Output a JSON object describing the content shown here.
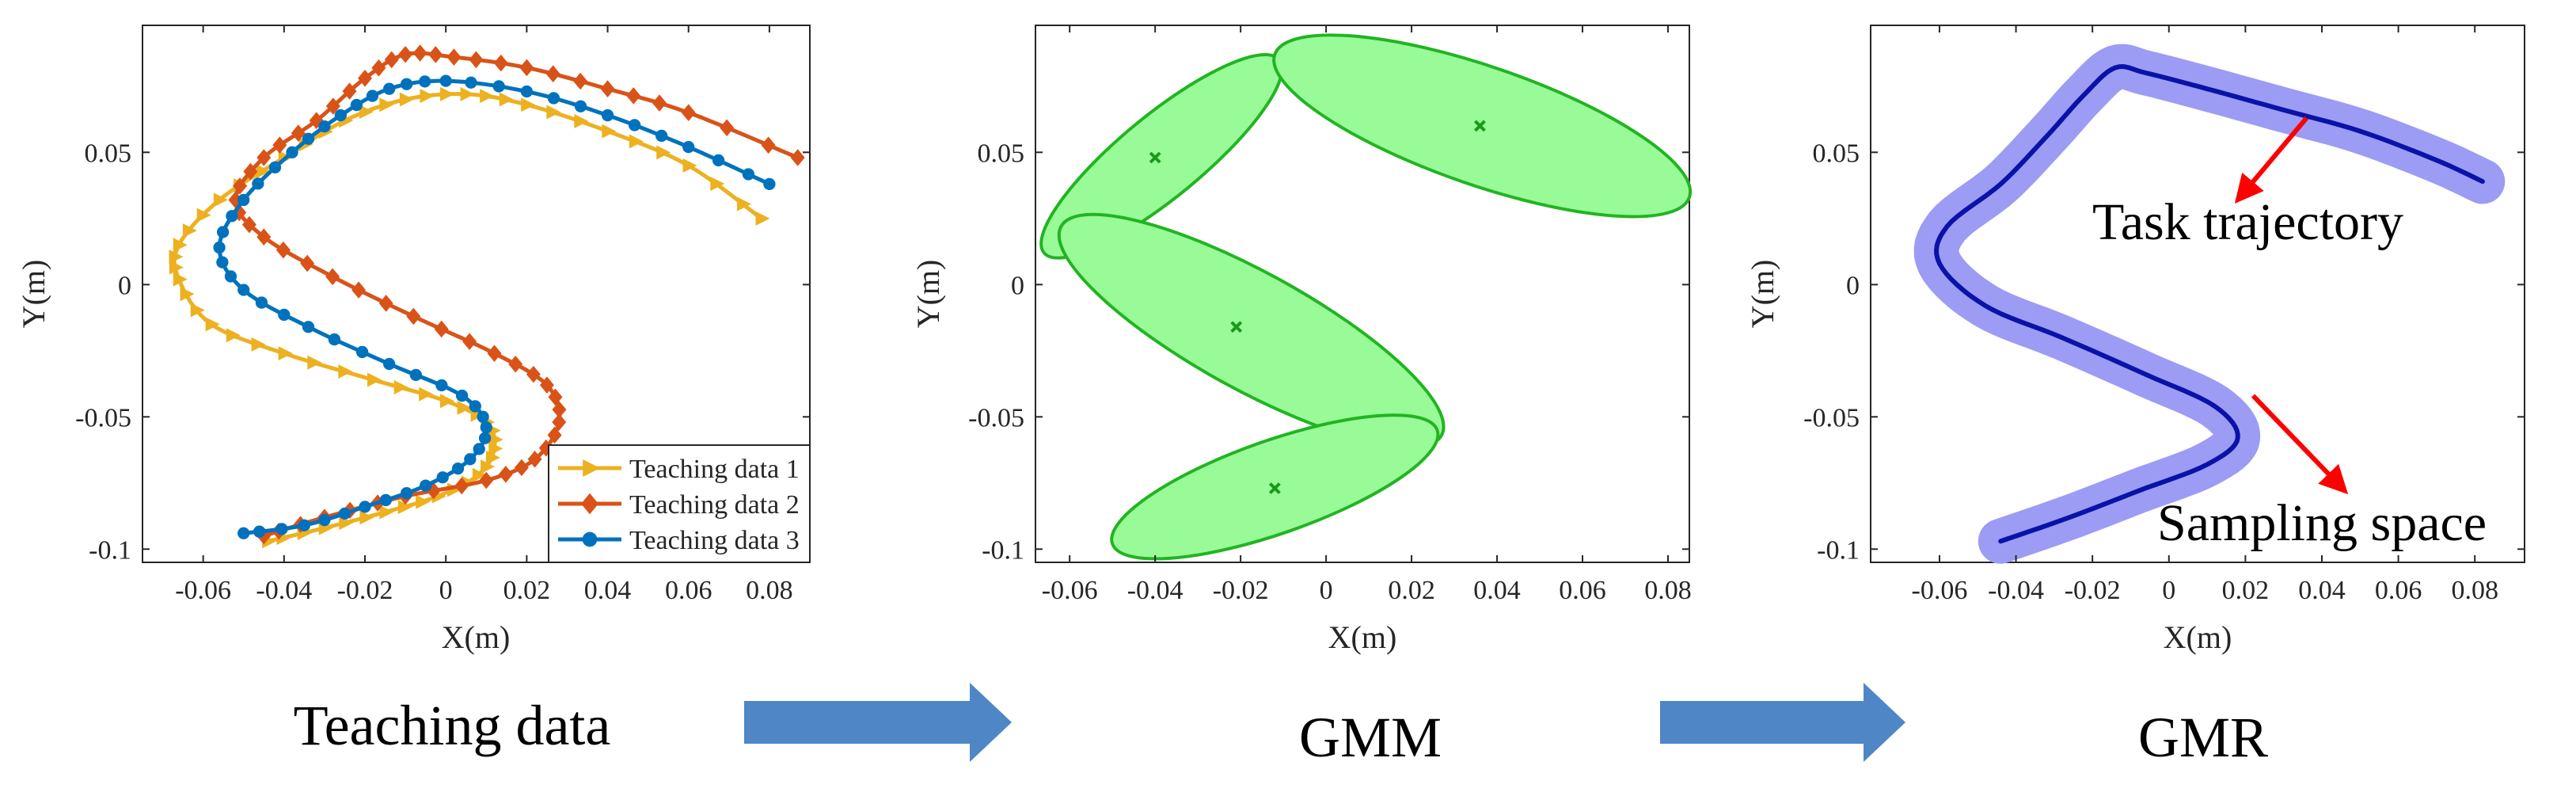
{
  "panels": [
    {
      "chart_data": {
        "type": "line",
        "title": "",
        "xlabel": "X(m)",
        "ylabel": "Y(m)",
        "xlim": [
          -0.075,
          0.09
        ],
        "ylim": [
          -0.105,
          0.098
        ],
        "xticks": [
          -0.06,
          -0.04,
          -0.02,
          0,
          0.02,
          0.04,
          0.06,
          0.08
        ],
        "xtick_labels": [
          "-0.06",
          "-0.04",
          "-0.02",
          "0",
          "0.02",
          "0.04",
          "0.06",
          "0.08"
        ],
        "yticks": [
          0.05,
          0,
          -0.05,
          -0.1
        ],
        "ytick_labels": [
          "0.05",
          "0",
          "-0.05",
          "-0.1"
        ],
        "grid": false,
        "legend_position": "bottom-right",
        "series": [
          {
            "name": "Teaching data 1",
            "color": "#EDB120",
            "marker": "triangle-right",
            "points": [
              [
                -0.044,
                -0.097
              ],
              [
                -0.03,
                -0.092
              ],
              [
                -0.015,
                -0.086
              ],
              [
                -0.002,
                -0.08
              ],
              [
                0.008,
                -0.072
              ],
              [
                0.012,
                -0.062
              ],
              [
                0.01,
                -0.052
              ],
              [
                0.0,
                -0.044
              ],
              [
                -0.018,
                -0.036
              ],
              [
                -0.04,
                -0.026
              ],
              [
                -0.058,
                -0.015
              ],
              [
                -0.066,
                0.002
              ],
              [
                -0.066,
                0.015
              ],
              [
                -0.056,
                0.032
              ],
              [
                -0.04,
                0.048
              ],
              [
                -0.025,
                0.062
              ],
              [
                -0.01,
                0.07
              ],
              [
                0.005,
                0.072
              ],
              [
                0.02,
                0.068
              ],
              [
                0.04,
                0.058
              ],
              [
                0.06,
                0.045
              ],
              [
                0.078,
                0.025
              ]
            ]
          },
          {
            "name": "Teaching data 2",
            "color": "#D95319",
            "marker": "diamond",
            "points": [
              [
                -0.045,
                -0.095
              ],
              [
                -0.03,
                -0.088
              ],
              [
                -0.01,
                -0.08
              ],
              [
                0.01,
                -0.074
              ],
              [
                0.022,
                -0.066
              ],
              [
                0.028,
                -0.052
              ],
              [
                0.025,
                -0.038
              ],
              [
                0.012,
                -0.026
              ],
              [
                -0.008,
                -0.012
              ],
              [
                -0.028,
                0.003
              ],
              [
                -0.045,
                0.018
              ],
              [
                -0.052,
                0.032
              ],
              [
                -0.045,
                0.048
              ],
              [
                -0.032,
                0.062
              ],
              [
                -0.02,
                0.078
              ],
              [
                -0.01,
                0.087
              ],
              [
                0.002,
                0.086
              ],
              [
                0.02,
                0.082
              ],
              [
                0.04,
                0.074
              ],
              [
                0.06,
                0.065
              ],
              [
                0.087,
                0.048
              ]
            ]
          },
          {
            "name": "Teaching data 3",
            "color": "#0072BD",
            "marker": "circle",
            "points": [
              [
                -0.05,
                -0.094
              ],
              [
                -0.035,
                -0.091
              ],
              [
                -0.02,
                -0.084
              ],
              [
                -0.005,
                -0.076
              ],
              [
                0.006,
                -0.066
              ],
              [
                0.01,
                -0.054
              ],
              [
                0.004,
                -0.042
              ],
              [
                -0.014,
                -0.03
              ],
              [
                -0.034,
                -0.016
              ],
              [
                -0.05,
                -0.002
              ],
              [
                -0.056,
                0.014
              ],
              [
                -0.05,
                0.032
              ],
              [
                -0.038,
                0.05
              ],
              [
                -0.026,
                0.064
              ],
              [
                -0.014,
                0.074
              ],
              [
                0.0,
                0.077
              ],
              [
                0.02,
                0.073
              ],
              [
                0.04,
                0.064
              ],
              [
                0.06,
                0.052
              ],
              [
                0.08,
                0.038
              ]
            ]
          }
        ]
      }
    },
    {
      "chart_data": {
        "type": "scatter",
        "title": "",
        "xlabel": "X(m)",
        "ylabel": "Y(m)",
        "xlim": [
          -0.068,
          0.085
        ],
        "ylim": [
          -0.105,
          0.098
        ],
        "xticks": [
          -0.06,
          -0.04,
          -0.02,
          0,
          0.02,
          0.04,
          0.06,
          0.08
        ],
        "xtick_labels": [
          "-0.06",
          "-0.04",
          "-0.02",
          "0",
          "0.02",
          "0.04",
          "0.06",
          "0.08"
        ],
        "yticks": [
          0.05,
          0,
          -0.05,
          -0.1
        ],
        "ytick_labels": [
          "0.05",
          "0",
          "-0.05",
          "-0.1"
        ],
        "grid": false,
        "fill_color": "#98FB98",
        "stroke_color": "#22B422",
        "center_color": "#1A9A1A",
        "ellipses": [
          {
            "center": [
              -0.04,
              0.048
            ],
            "p1": [
              -0.066,
              0.012
            ],
            "p2": [
              -0.011,
              0.085
            ]
          },
          {
            "center": [
              0.036,
              0.06
            ],
            "p1": [
              -0.012,
              0.087
            ],
            "p2": [
              0.085,
              0.033
            ]
          },
          {
            "center": [
              -0.021,
              -0.016
            ],
            "p1": [
              -0.062,
              0.022
            ],
            "p2": [
              0.027,
              -0.057
            ]
          },
          {
            "center": [
              -0.012,
              -0.077
            ],
            "p1": [
              -0.05,
              -0.098
            ],
            "p2": [
              0.026,
              -0.055
            ]
          }
        ]
      }
    },
    {
      "chart_data": {
        "type": "line",
        "title": "",
        "xlabel": "X(m)",
        "ylabel": "Y(m)",
        "xlim": [
          -0.078,
          0.093
        ],
        "ylim": [
          -0.105,
          0.098
        ],
        "xticks": [
          -0.06,
          -0.04,
          -0.02,
          0,
          0.02,
          0.04,
          0.06,
          0.08
        ],
        "xtick_labels": [
          "-0.06",
          "-0.04",
          "-0.02",
          "0",
          "0.02",
          "0.04",
          "0.06",
          "0.08"
        ],
        "yticks": [
          0.05,
          0,
          -0.05,
          -0.1
        ],
        "ytick_labels": [
          "0.05",
          "0",
          "-0.05",
          "-0.1"
        ],
        "grid": false,
        "line_color": "#0B12A8",
        "band_color": "#9C9CF5",
        "band_halfwidth": 0.0085,
        "trajectory": [
          [
            -0.044,
            -0.097
          ],
          [
            -0.026,
            -0.088
          ],
          [
            -0.008,
            -0.078
          ],
          [
            0.01,
            -0.068
          ],
          [
            0.018,
            -0.058
          ],
          [
            0.012,
            -0.046
          ],
          [
            -0.006,
            -0.034
          ],
          [
            -0.028,
            -0.02
          ],
          [
            -0.048,
            -0.008
          ],
          [
            -0.06,
            0.008
          ],
          [
            -0.058,
            0.022
          ],
          [
            -0.044,
            0.038
          ],
          [
            -0.032,
            0.056
          ],
          [
            -0.022,
            0.072
          ],
          [
            -0.014,
            0.082
          ],
          [
            -0.006,
            0.08
          ],
          [
            0.01,
            0.074
          ],
          [
            0.03,
            0.066
          ],
          [
            0.05,
            0.058
          ],
          [
            0.07,
            0.047
          ],
          [
            0.082,
            0.039
          ]
        ],
        "annotations": [
          {
            "text": "Task trajectory",
            "arrow_from": [
              0.036,
              0.063
            ],
            "arrow_to": [
              0.018,
              0.032
            ],
            "color": "#FF0000"
          },
          {
            "text": "Sampling space",
            "arrow_from": [
              0.022,
              -0.042
            ],
            "arrow_to": [
              0.046,
              -0.078
            ],
            "color": "#FF0000"
          }
        ]
      }
    }
  ],
  "captions": {
    "teaching": "Teaching data",
    "gmm": "GMM",
    "gmr": "GMR"
  },
  "arrow_color": "#4F86C6"
}
